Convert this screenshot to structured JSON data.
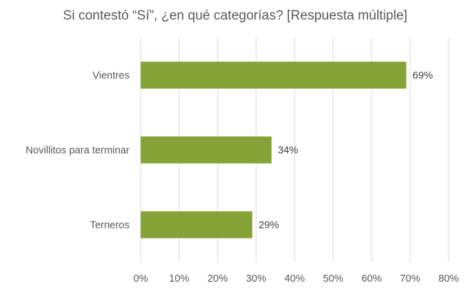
{
  "chart_data": {
    "type": "bar",
    "orientation": "horizontal",
    "title": "Si contestó “Sí”, ¿en qué categorías? [Respuesta múltiple]",
    "categories": [
      "Vientres",
      "Novillitos para terminar",
      "Terneros"
    ],
    "values": [
      69,
      34,
      29
    ],
    "data_labels": [
      "69%",
      "34%",
      "29%"
    ],
    "xlim": [
      0,
      80
    ],
    "x_ticks": [
      0,
      10,
      20,
      30,
      40,
      50,
      60,
      70,
      80
    ],
    "x_tick_labels": [
      "0%",
      "10%",
      "20%",
      "30%",
      "40%",
      "50%",
      "60%",
      "70%",
      "80%"
    ],
    "grid": true,
    "legend": false,
    "bar_color": "#86a337"
  }
}
